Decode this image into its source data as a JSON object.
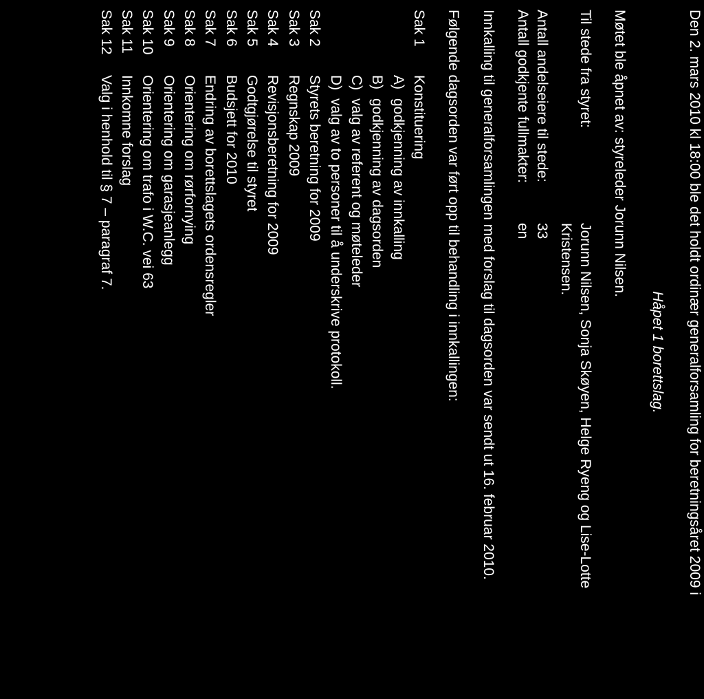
{
  "intro_line": "Den 2. mars 2010 kl 18:00 ble det holdt ordinær generalforsamling for beretningsåret 2009 i",
  "italic_line": "Håpet 1 borettslag.",
  "opened_by": "Møtet ble åpnet av: styreleder Jorunn Nilsen.",
  "present_label": "Til stede fra styret:",
  "present_value_line1": "Jorunn Nilsen, Sonja Skøyen, Helge Ryeng og Lise-Lotte",
  "present_value_line2": "Kristensen.",
  "count_owners_label": "Antall andelseiere til stede:",
  "count_owners_value": "33",
  "count_proxy_label": "Antall godkjente fullmakter:",
  "count_proxy_value": "en",
  "innkalling_line": "Innkalling til generalforsamlingen med forslag til dagsorden var sendt ut 16. februar 2010.",
  "dagsorden_line": "Følgende dagsorden var ført opp til behandling i innkallingen:",
  "sak1_num": "Sak 1",
  "sak1_text": "Konstituering",
  "sak1_A_letter": "A)",
  "sak1_A_text": "godkjenning av innkalling",
  "sak1_B_letter": "B)",
  "sak1_B_text": "godkjenning av dagsorden",
  "sak1_C_letter": "C)",
  "sak1_C_text": "valg av referent og møteleder",
  "sak1_D_letter": "D)",
  "sak1_D_text": "valg av to personer til å underskrive protokoll.",
  "sak2_num": "Sak 2",
  "sak2_text": "Styrets beretning for 2009",
  "sak3_num": "Sak 3",
  "sak3_text": "Regnskap 2009",
  "sak4_num": "Sak 4",
  "sak4_text": "Revisjonsberetning for 2009",
  "sak5_num": "Sak 5",
  "sak5_text": "Godtgjørelse til styret",
  "sak6_num": "Sak 6",
  "sak6_text": "Budsjett for 2010",
  "sak7_num": "Sak 7",
  "sak7_text": "Endring av borettslagets ordensregler",
  "sak8_num": "Sak 8",
  "sak8_text": "Orientering om rørfornying",
  "sak9_num": "Sak 9",
  "sak9_text": "Orientering om garasjeanlegg",
  "sak10_num": "Sak 10",
  "sak10_text": "Orientering om trafo i W.C. vei 63",
  "sak11_num": "Sak 11",
  "sak11_text": "Innkomne forslag",
  "sak12_num": "Sak 12",
  "sak12_text": "Valg i henhold til § 7 – paragraf 7."
}
